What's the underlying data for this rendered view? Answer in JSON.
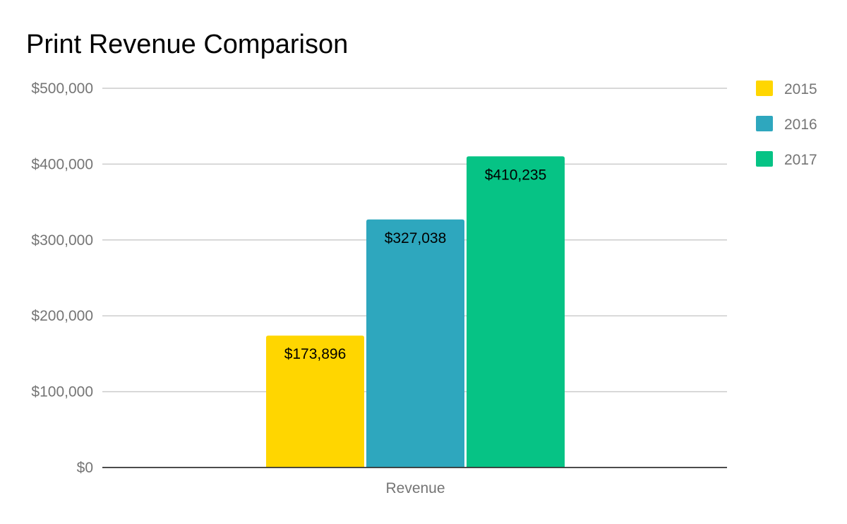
{
  "chart_data": {
    "type": "bar",
    "title": "Print Revenue Comparison",
    "categories": [
      "Revenue"
    ],
    "series": [
      {
        "name": "2015",
        "values": [
          173896
        ],
        "label": "$173,896",
        "color": "#FFD600"
      },
      {
        "name": "2016",
        "values": [
          327038
        ],
        "label": "$327,038",
        "color": "#2EA7BE"
      },
      {
        "name": "2017",
        "values": [
          410235
        ],
        "label": "$410,235",
        "color": "#06C385"
      }
    ],
    "xlabel": "",
    "ylabel": "",
    "ylim": [
      0,
      500000
    ],
    "yticks": [
      {
        "value": 0,
        "label": "$0"
      },
      {
        "value": 100000,
        "label": "$100,000"
      },
      {
        "value": 200000,
        "label": "$200,000"
      },
      {
        "value": 300000,
        "label": "$300,000"
      },
      {
        "value": 400000,
        "label": "$400,000"
      },
      {
        "value": 500000,
        "label": "$500,000"
      }
    ],
    "grid": true,
    "legend_position": "right"
  }
}
